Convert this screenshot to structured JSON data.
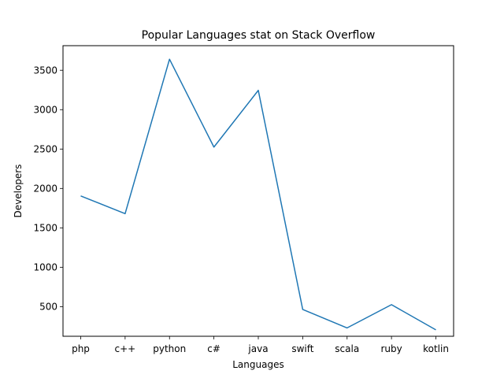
{
  "chart_data": {
    "type": "line",
    "title": "Popular Languages stat on Stack Overflow",
    "xlabel": "Languages",
    "ylabel": "Developers",
    "categories": [
      "php",
      "c++",
      "python",
      "c#",
      "java",
      "swift",
      "scala",
      "ruby",
      "kotlin"
    ],
    "values": [
      1905,
      1680,
      3640,
      2525,
      3245,
      465,
      230,
      525,
      205
    ],
    "yticks": [
      500,
      1000,
      1500,
      2000,
      2500,
      3000,
      3500
    ],
    "ylim": [
      124,
      3812
    ],
    "grid": false,
    "line_color": "#1f77b4"
  }
}
